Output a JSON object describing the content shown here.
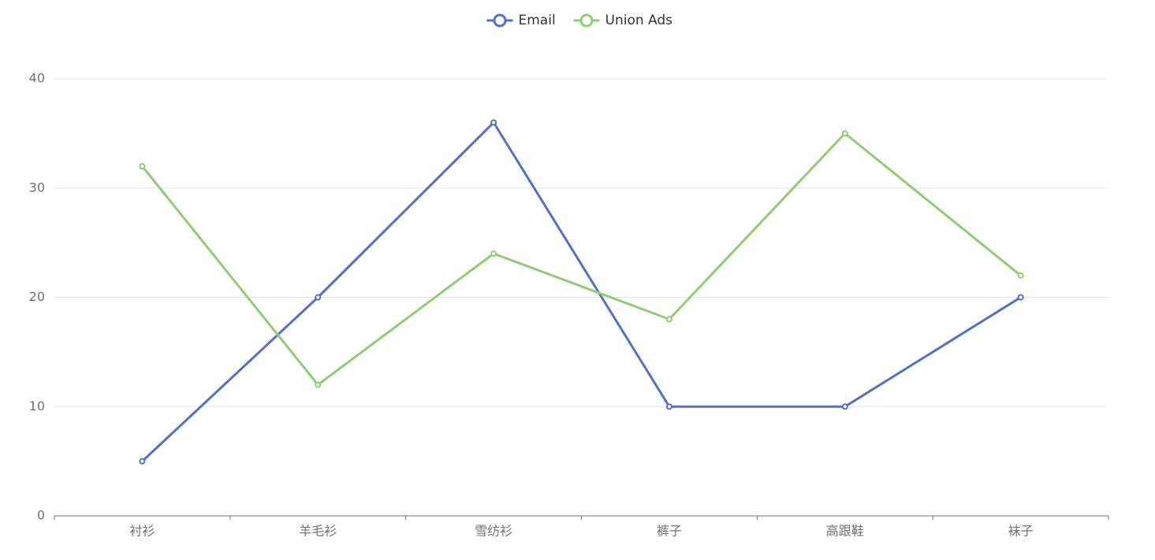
{
  "chart_data": {
    "type": "line",
    "categories": [
      "衬衫",
      "羊毛衫",
      "雪纺衫",
      "裤子",
      "高跟鞋",
      "袜子"
    ],
    "series": [
      {
        "name": "Email",
        "color": "#5470c6",
        "values": [
          5,
          20,
          36,
          10,
          10,
          20
        ]
      },
      {
        "name": "Union Ads",
        "color": "#91cc75",
        "values": [
          32,
          12,
          24,
          18,
          35,
          22
        ]
      }
    ],
    "ylim": [
      0,
      40
    ],
    "yticks": [
      0,
      10,
      20,
      30,
      40
    ],
    "grid": true,
    "legend": "top"
  }
}
